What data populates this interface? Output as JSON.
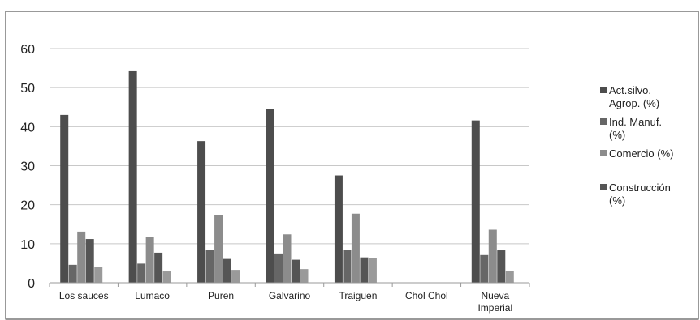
{
  "chart_data": {
    "type": "bar",
    "title": "",
    "xlabel": "",
    "ylabel": "",
    "ylim": [
      0,
      60
    ],
    "yticks": [
      0,
      10,
      20,
      30,
      40,
      50,
      60
    ],
    "grid": true,
    "legend_position": "right",
    "categories": [
      [
        "Los sauces"
      ],
      [
        "Lumaco"
      ],
      [
        "Puren"
      ],
      [
        "Galvarino"
      ],
      [
        "Traiguen"
      ],
      [
        "Chol Chol"
      ],
      [
        "Nueva",
        "Imperial"
      ]
    ],
    "series": [
      {
        "name": [
          "Act.silvo.",
          "Agrop. (%)"
        ],
        "color": "#4d4d4d",
        "values": [
          43.0,
          54.2,
          36.3,
          44.6,
          27.5,
          0,
          41.6
        ]
      },
      {
        "name": [
          "Ind. Manuf.",
          "(%)"
        ],
        "color": "#666666",
        "values": [
          4.6,
          4.9,
          8.4,
          7.5,
          8.5,
          0,
          7.1
        ]
      },
      {
        "name": [
          "Comercio (%)"
        ],
        "color": "#8c8c8c",
        "values": [
          13.1,
          11.8,
          17.3,
          12.4,
          17.7,
          0,
          13.6
        ]
      },
      {
        "name": [
          "Construcción",
          "(%)"
        ],
        "color": "#555555",
        "values": [
          11.2,
          7.7,
          6.1,
          5.9,
          6.5,
          0,
          8.3
        ]
      },
      {
        "name": [],
        "color": "#9a9a9a",
        "values": [
          4.1,
          2.9,
          3.3,
          3.5,
          6.3,
          0,
          3.0
        ]
      }
    ]
  }
}
